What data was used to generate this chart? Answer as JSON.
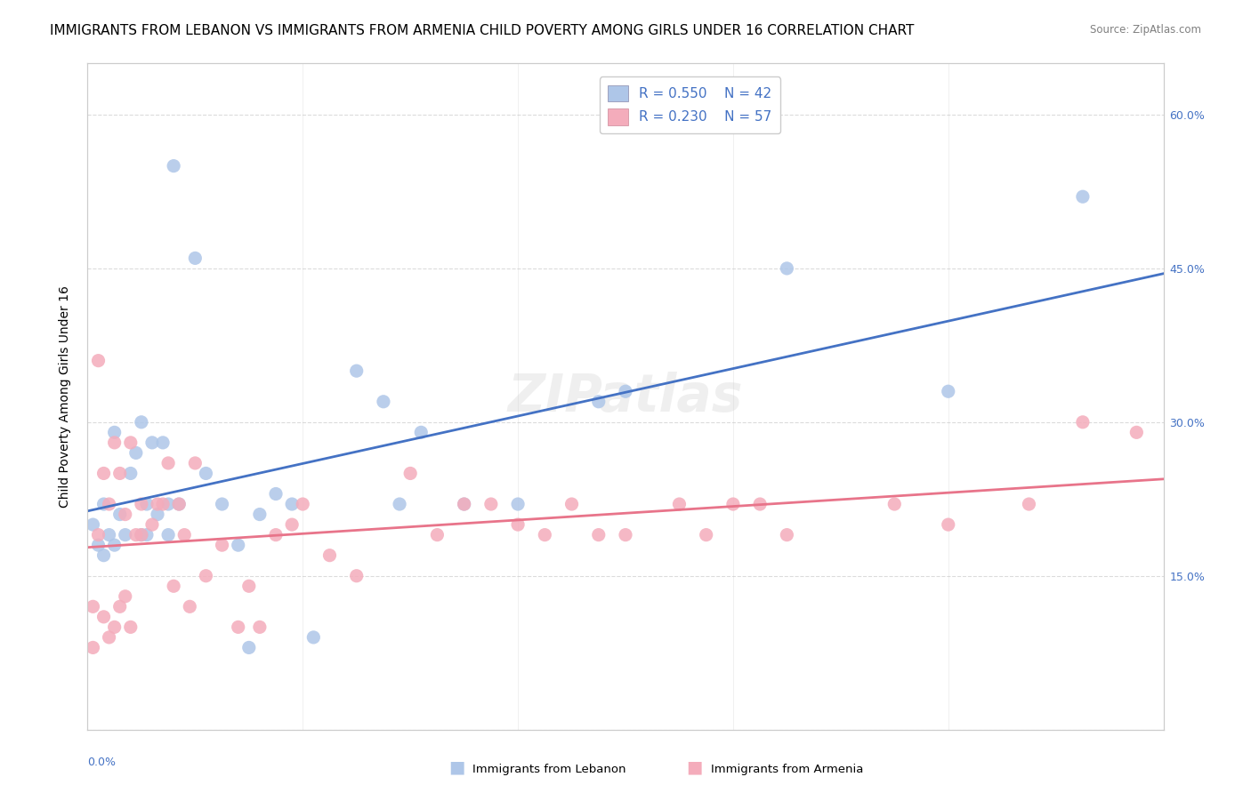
{
  "title": "IMMIGRANTS FROM LEBANON VS IMMIGRANTS FROM ARMENIA CHILD POVERTY AMONG GIRLS UNDER 16 CORRELATION CHART",
  "source": "Source: ZipAtlas.com",
  "ylabel": "Child Poverty Among Girls Under 16",
  "xlim": [
    0.0,
    0.2
  ],
  "ylim": [
    0.0,
    0.65
  ],
  "x_ticks": [
    0.0,
    0.04,
    0.08,
    0.12,
    0.16,
    0.2
  ],
  "y_ticks": [
    0.0,
    0.15,
    0.3,
    0.45,
    0.6
  ],
  "y_tick_labels_right": [
    "",
    "15.0%",
    "30.0%",
    "45.0%",
    "60.0%"
  ],
  "watermark": "ZIPatlas",
  "lebanon_color": "#AEC6E8",
  "armenia_color": "#F4ACBB",
  "lebanon_line_color": "#4472C4",
  "armenia_line_color": "#E8748A",
  "lebanon_R": 0.55,
  "lebanon_N": 42,
  "armenia_R": 0.23,
  "armenia_N": 57,
  "lebanon_points_x": [
    0.001,
    0.002,
    0.003,
    0.003,
    0.004,
    0.005,
    0.005,
    0.006,
    0.007,
    0.008,
    0.009,
    0.01,
    0.01,
    0.011,
    0.011,
    0.012,
    0.013,
    0.014,
    0.015,
    0.015,
    0.016,
    0.017,
    0.02,
    0.022,
    0.025,
    0.028,
    0.03,
    0.032,
    0.035,
    0.038,
    0.042,
    0.05,
    0.055,
    0.058,
    0.062,
    0.07,
    0.08,
    0.095,
    0.1,
    0.13,
    0.16,
    0.185
  ],
  "lebanon_points_y": [
    0.2,
    0.18,
    0.17,
    0.22,
    0.19,
    0.18,
    0.29,
    0.21,
    0.19,
    0.25,
    0.27,
    0.19,
    0.3,
    0.19,
    0.22,
    0.28,
    0.21,
    0.28,
    0.19,
    0.22,
    0.55,
    0.22,
    0.46,
    0.25,
    0.22,
    0.18,
    0.08,
    0.21,
    0.23,
    0.22,
    0.09,
    0.35,
    0.32,
    0.22,
    0.29,
    0.22,
    0.22,
    0.32,
    0.33,
    0.45,
    0.33,
    0.52
  ],
  "armenia_points_x": [
    0.001,
    0.001,
    0.002,
    0.002,
    0.003,
    0.003,
    0.004,
    0.004,
    0.005,
    0.005,
    0.006,
    0.006,
    0.007,
    0.007,
    0.008,
    0.008,
    0.009,
    0.01,
    0.01,
    0.012,
    0.013,
    0.014,
    0.015,
    0.016,
    0.017,
    0.018,
    0.019,
    0.02,
    0.022,
    0.025,
    0.028,
    0.03,
    0.032,
    0.035,
    0.038,
    0.04,
    0.045,
    0.05,
    0.06,
    0.065,
    0.07,
    0.075,
    0.08,
    0.085,
    0.09,
    0.095,
    0.1,
    0.11,
    0.115,
    0.12,
    0.125,
    0.13,
    0.15,
    0.16,
    0.175,
    0.185,
    0.195
  ],
  "armenia_points_y": [
    0.08,
    0.12,
    0.19,
    0.36,
    0.11,
    0.25,
    0.09,
    0.22,
    0.1,
    0.28,
    0.12,
    0.25,
    0.13,
    0.21,
    0.1,
    0.28,
    0.19,
    0.19,
    0.22,
    0.2,
    0.22,
    0.22,
    0.26,
    0.14,
    0.22,
    0.19,
    0.12,
    0.26,
    0.15,
    0.18,
    0.1,
    0.14,
    0.1,
    0.19,
    0.2,
    0.22,
    0.17,
    0.15,
    0.25,
    0.19,
    0.22,
    0.22,
    0.2,
    0.19,
    0.22,
    0.19,
    0.19,
    0.22,
    0.19,
    0.22,
    0.22,
    0.19,
    0.22,
    0.2,
    0.22,
    0.3,
    0.29
  ],
  "background_color": "#FFFFFF",
  "grid_color": "#CCCCCC",
  "title_fontsize": 11,
  "axis_label_fontsize": 10,
  "tick_fontsize": 9
}
